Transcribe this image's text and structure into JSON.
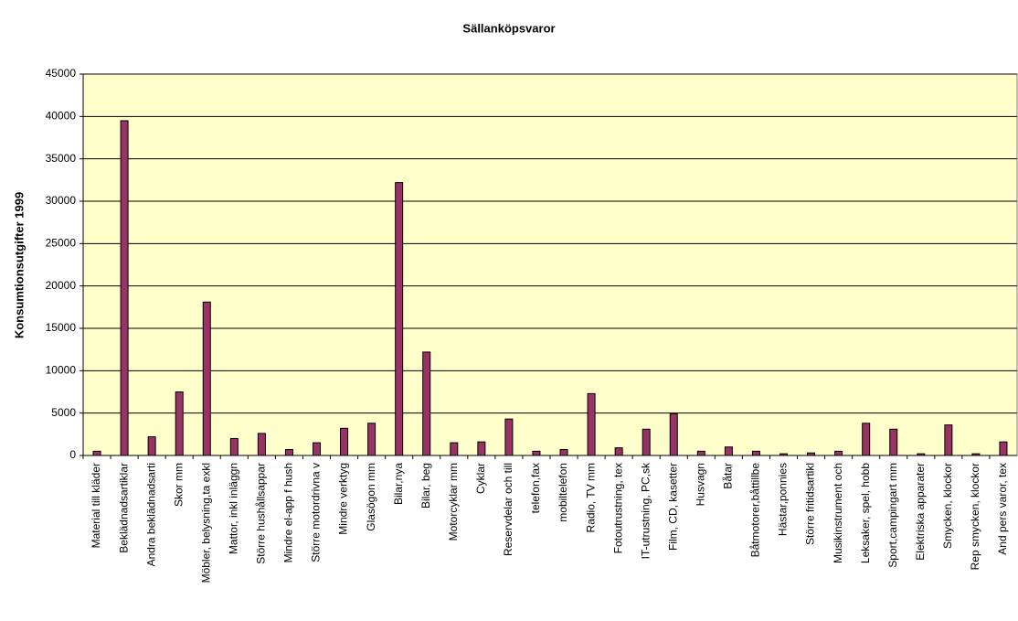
{
  "chart_data": {
    "type": "bar",
    "title": "Sällanköpsvaror",
    "y_label": "Konsumtionsutgifter 1999",
    "categories": [
      "Material till kläder",
      "Beklädnadsartiklar",
      "Andra beklädnadsarti",
      "Skor mm",
      "Möbler, belysning,ta exkl",
      "Mattor, inkl inläggn",
      "Större hushållsappar",
      "Mindre el-app f hush",
      "Större motordrivna v",
      "Mindre verktyg",
      "Glasögon mm",
      "Bilar,nya",
      "Bilar, beg",
      "Motorcyklar mm",
      "Cyklar",
      "Reservdelar och till",
      "telefon,fax",
      "mobiltelefon",
      "Radio, TV mm",
      "Fotoutrustning, tex",
      "IT-utrustning, PC,sk",
      "Film, CD, kasetter",
      "Husvagn",
      "Båtar",
      "Båtmotorer,båttillbe",
      "Hästar,ponnies",
      "Större fritidsartikl",
      "Musikinstrument och",
      "Leksaker, spel, hobb",
      "Sport,campingart mm",
      "Elektriska apparater",
      "Smycken, klockor",
      "Rep smycken, klockor",
      "And pers varor, tex"
    ],
    "values": [
      500,
      39500,
      2200,
      7500,
      18100,
      2000,
      2600,
      700,
      1500,
      3200,
      3800,
      32200,
      12200,
      1500,
      1600,
      4300,
      500,
      700,
      7300,
      900,
      3100,
      4900,
      500,
      1000,
      500,
      200,
      300,
      500,
      3800,
      3100,
      200,
      3600,
      200,
      1600
    ],
    "color": "#993366",
    "ylim": [
      0,
      45000
    ],
    "yticks": [
      0,
      5000,
      10000,
      15000,
      20000,
      25000,
      30000,
      35000,
      40000,
      45000
    ],
    "grid": true
  }
}
